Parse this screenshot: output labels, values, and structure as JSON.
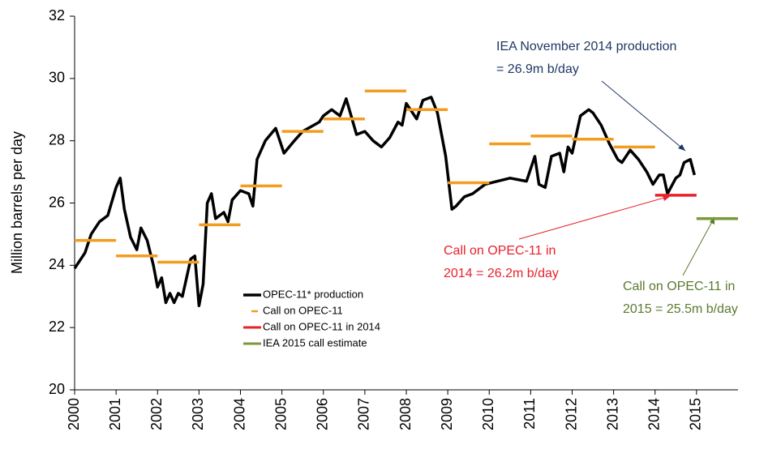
{
  "chart_data": {
    "type": "line",
    "y_label": "Million barrels per day",
    "xlim": [
      2000,
      2016
    ],
    "ylim": [
      20,
      32
    ],
    "xticks": [
      2000,
      2001,
      2002,
      2003,
      2004,
      2005,
      2006,
      2007,
      2008,
      2009,
      2010,
      2011,
      2012,
      2013,
      2014,
      2015
    ],
    "yticks": [
      20,
      22,
      24,
      26,
      28,
      30,
      32
    ],
    "series": [
      {
        "name": "OPEC-11* production",
        "color": "#000000",
        "style": "line",
        "x": [
          2000.0,
          2000.25,
          2000.4,
          2000.6,
          2000.8,
          2001.0,
          2001.1,
          2001.2,
          2001.35,
          2001.5,
          2001.6,
          2001.75,
          2001.9,
          2002.0,
          2002.1,
          2002.2,
          2002.3,
          2002.4,
          2002.5,
          2002.6,
          2002.7,
          2002.8,
          2002.9,
          2003.0,
          2003.1,
          2003.2,
          2003.3,
          2003.4,
          2003.6,
          2003.7,
          2003.8,
          2004.0,
          2004.2,
          2004.3,
          2004.4,
          2004.6,
          2004.85,
          2005.05,
          2005.3,
          2005.5,
          2005.9,
          2006.0,
          2006.2,
          2006.4,
          2006.55,
          2006.8,
          2007.0,
          2007.2,
          2007.4,
          2007.6,
          2007.8,
          2007.9,
          2008.0,
          2008.15,
          2008.25,
          2008.4,
          2008.6,
          2008.75,
          2008.95,
          2009.1,
          2009.2,
          2009.4,
          2009.6,
          2009.9,
          2010.2,
          2010.5,
          2010.9,
          2011.1,
          2011.2,
          2011.35,
          2011.5,
          2011.7,
          2011.8,
          2011.9,
          2012.0,
          2012.2,
          2012.4,
          2012.5,
          2012.7,
          2012.9,
          2013.1,
          2013.2,
          2013.4,
          2013.6,
          2013.8,
          2013.95,
          2014.1,
          2014.2,
          2014.3,
          2014.5,
          2014.6,
          2014.7,
          2014.85,
          2014.95
        ],
        "values": [
          23.9,
          24.4,
          25.0,
          25.4,
          25.6,
          26.5,
          26.8,
          25.8,
          24.9,
          24.5,
          25.2,
          24.8,
          24.0,
          23.3,
          23.6,
          22.8,
          23.1,
          22.8,
          23.1,
          23.0,
          23.6,
          24.2,
          24.3,
          22.7,
          23.4,
          26.0,
          26.3,
          25.5,
          25.7,
          25.4,
          26.1,
          26.4,
          26.3,
          25.9,
          27.4,
          28.0,
          28.4,
          27.6,
          28.0,
          28.3,
          28.6,
          28.8,
          29.0,
          28.8,
          29.35,
          28.2,
          28.3,
          28.0,
          27.8,
          28.1,
          28.6,
          28.5,
          29.2,
          28.9,
          28.7,
          29.3,
          29.4,
          28.9,
          27.5,
          25.8,
          25.9,
          26.2,
          26.3,
          26.6,
          26.7,
          26.8,
          26.7,
          27.5,
          26.6,
          26.5,
          27.5,
          27.6,
          27.0,
          27.8,
          27.6,
          28.8,
          29.0,
          28.9,
          28.5,
          27.9,
          27.4,
          27.3,
          27.7,
          27.4,
          27.0,
          26.6,
          26.9,
          26.9,
          26.3,
          26.8,
          26.9,
          27.3,
          27.4,
          26.9
        ]
      },
      {
        "name": "Call on OPEC-11",
        "color": "#f39c1f",
        "style": "step",
        "x": [
          2000,
          2001,
          2002,
          2003,
          2004,
          2005,
          2006,
          2007,
          2008,
          2009,
          2010,
          2011,
          2012,
          2013
        ],
        "values": [
          24.8,
          24.3,
          24.1,
          25.3,
          26.55,
          28.3,
          28.7,
          29.6,
          29.0,
          26.65,
          27.9,
          28.15,
          28.05,
          27.8
        ]
      },
      {
        "name": "Call on OPEC-11 in 2014",
        "color": "#e8212b",
        "style": "step",
        "x": [
          2014
        ],
        "values": [
          26.25
        ]
      },
      {
        "name": "IEA 2015 call estimate",
        "color": "#7a9a3a",
        "style": "step",
        "x": [
          2015
        ],
        "values": [
          25.5
        ]
      }
    ],
    "annotations": [
      {
        "lines": [
          "IEA November 2014 production",
          "= 26.9m b/day"
        ],
        "color": "#1f3864"
      },
      {
        "lines": [
          "Call  on OPEC-11 in",
          "2014 = 26.2m b/day"
        ],
        "color": "#e8212b"
      },
      {
        "lines": [
          "Call on OPEC-11 in",
          "2015 = 25.5m b/day"
        ],
        "color": "#5b7a2e"
      }
    ]
  }
}
